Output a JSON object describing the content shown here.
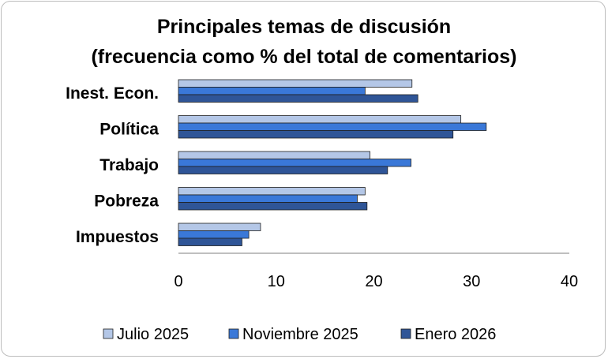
{
  "chart_data": {
    "type": "bar",
    "orientation": "horizontal",
    "title": "Principales temas de discusión",
    "subtitle": "(frecuencia como % del total de comentarios)",
    "categories": [
      "Inest. Econ.",
      "Política",
      "Trabajo",
      "Pobreza",
      "Impuestos"
    ],
    "series": [
      {
        "name": "Julio 2025",
        "color": "#b4c7e7",
        "values": [
          23.9,
          28.9,
          19.6,
          19.1,
          8.4
        ]
      },
      {
        "name": "Noviembre 2025",
        "color": "#3a78d8",
        "values": [
          19.1,
          31.5,
          23.8,
          18.3,
          7.2
        ]
      },
      {
        "name": "Enero 2026",
        "color": "#2f5597",
        "values": [
          24.5,
          28.1,
          21.4,
          19.3,
          6.5
        ]
      }
    ],
    "xlim": [
      0,
      40
    ],
    "xticks": [
      "0",
      "10",
      "20",
      "30",
      "40"
    ],
    "grid": false,
    "legend_position": "bottom"
  }
}
